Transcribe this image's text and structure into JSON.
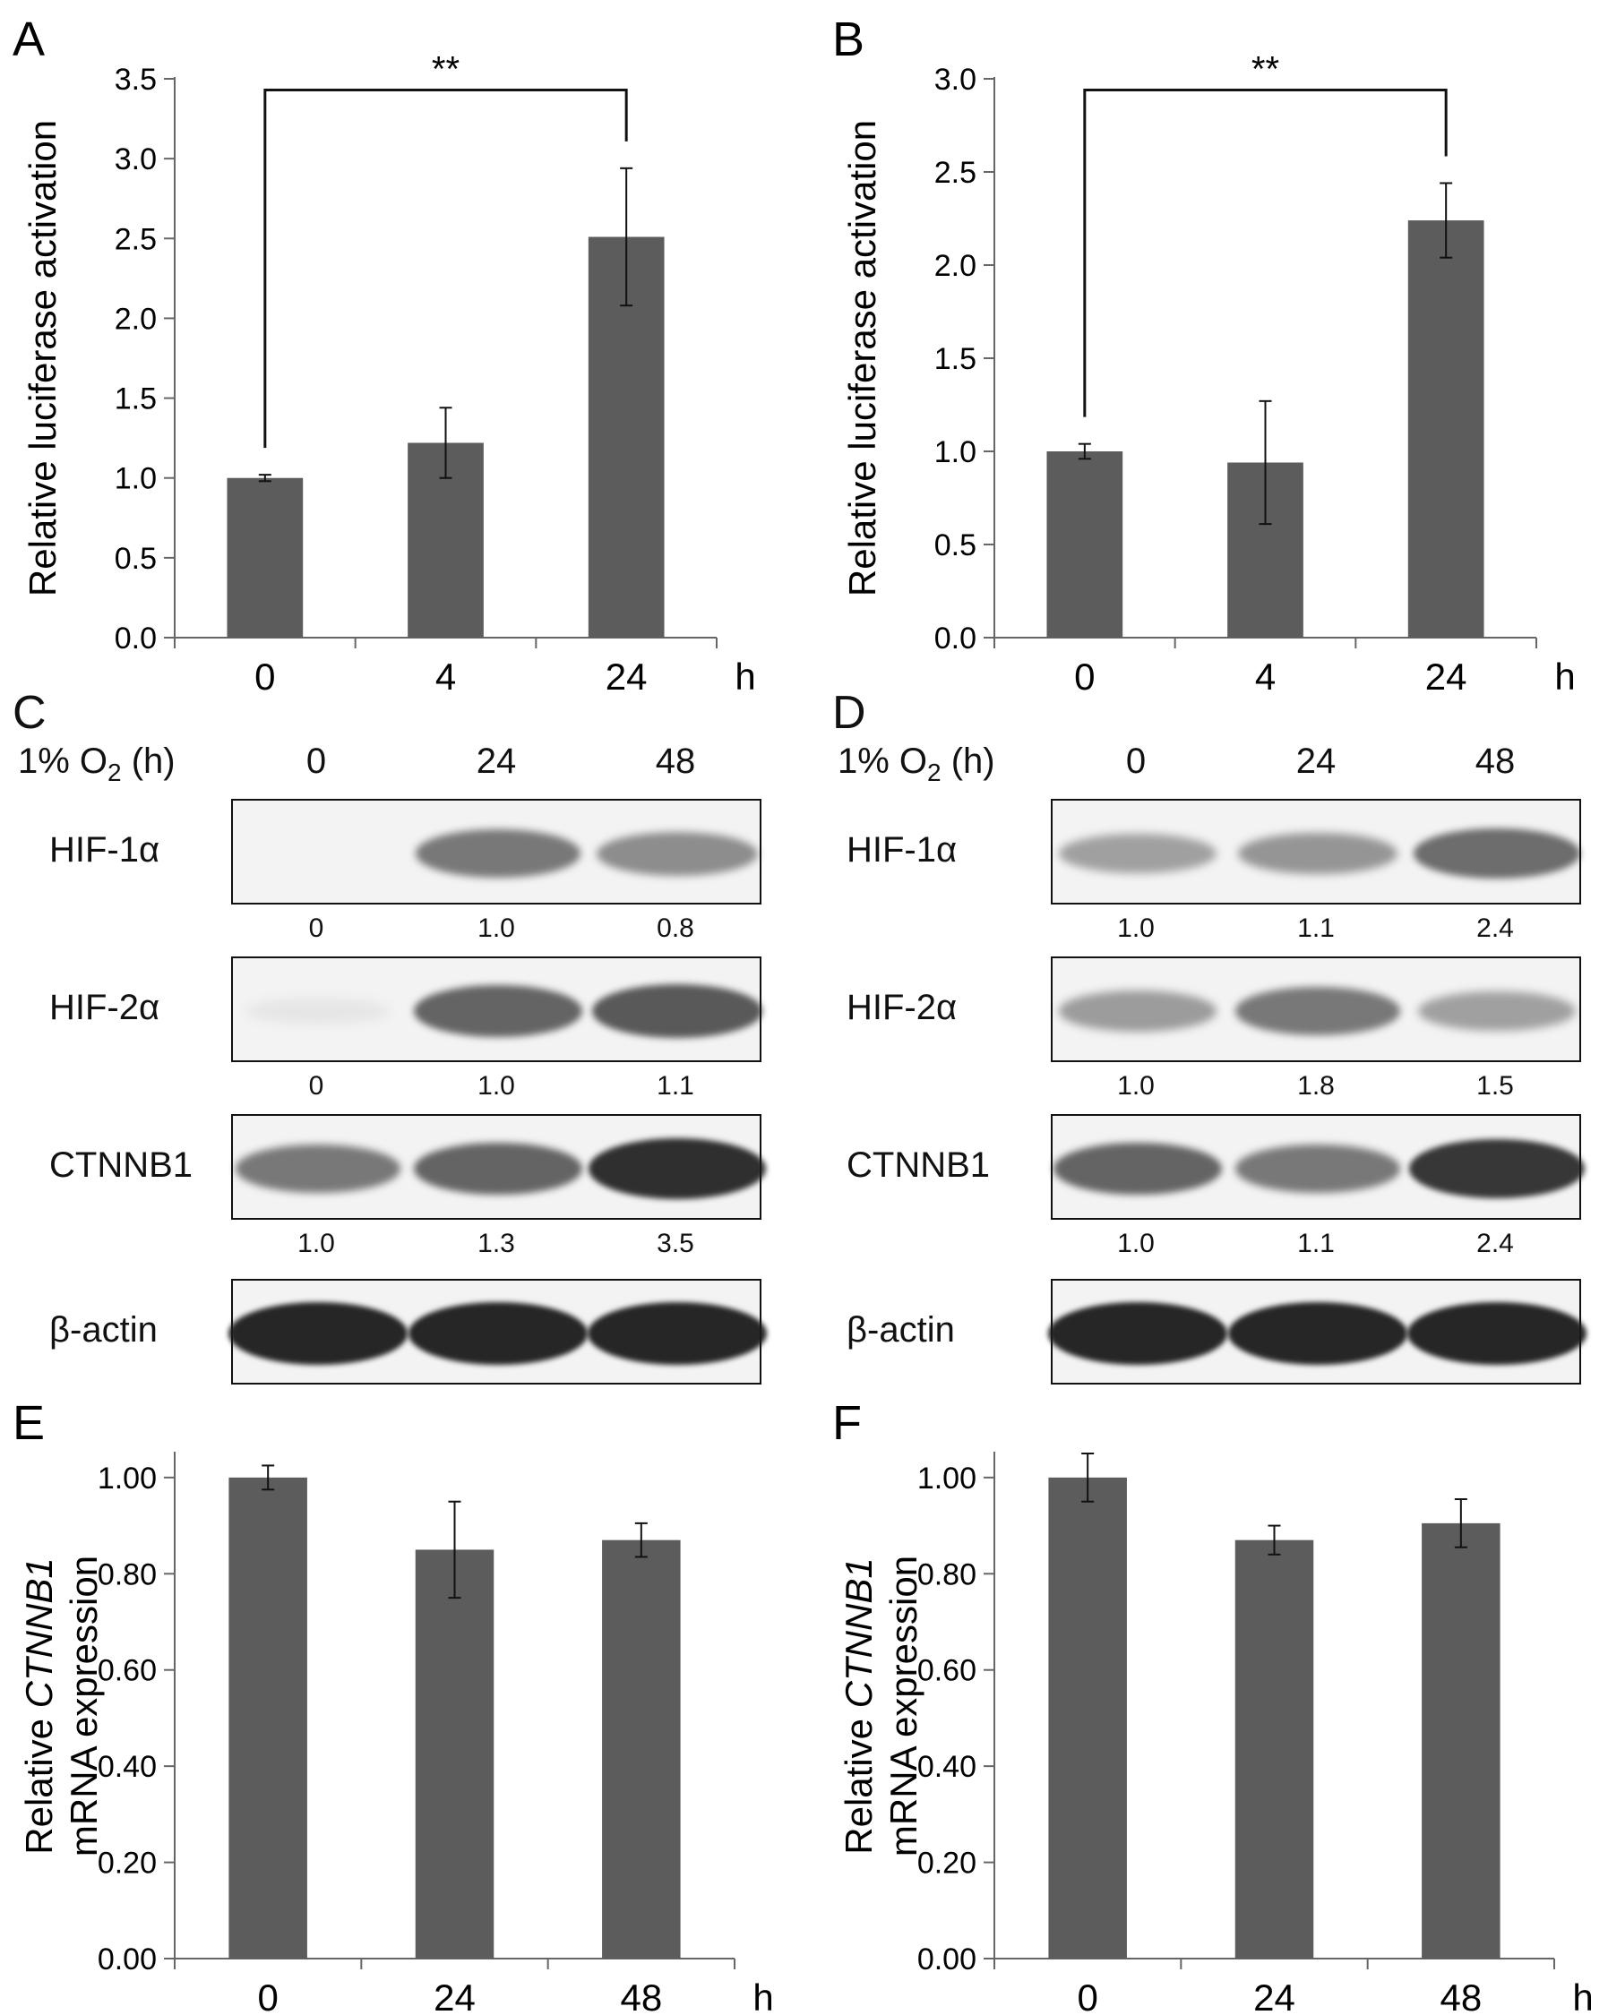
{
  "charts": [
    {
      "id": "A",
      "letter": "A",
      "type": "bar",
      "categories": [
        "0",
        "4",
        "24"
      ],
      "unit": "h",
      "values": [
        1.0,
        1.22,
        2.51
      ],
      "errors": [
        0.02,
        0.22,
        0.43
      ],
      "ylabel_parts": [
        {
          "text": "Relative luciferase activation",
          "italic": false
        }
      ],
      "ylim": [
        0,
        3.5
      ],
      "ticks": [
        0.0,
        0.5,
        1.0,
        1.5,
        2.0,
        2.5,
        3.0,
        3.5
      ],
      "tick_decimals": 1,
      "significance": {
        "from": 0,
        "to": 2,
        "label": "**",
        "y": 3.43
      }
    },
    {
      "id": "B",
      "letter": "B",
      "type": "bar",
      "categories": [
        "0",
        "4",
        "24"
      ],
      "unit": "h",
      "values": [
        1.0,
        0.94,
        2.24
      ],
      "errors": [
        0.04,
        0.33,
        0.2
      ],
      "ylabel_parts": [
        {
          "text": "Relative luciferase activation",
          "italic": false
        }
      ],
      "ylim": [
        0,
        3.0
      ],
      "ticks": [
        0.0,
        0.5,
        1.0,
        1.5,
        2.0,
        2.5,
        3.0
      ],
      "tick_decimals": 1,
      "significance": {
        "from": 0,
        "to": 2,
        "label": "**",
        "y": 2.94
      }
    },
    {
      "id": "E",
      "letter": "E",
      "type": "bar",
      "categories": [
        "0",
        "24",
        "48"
      ],
      "unit": "h",
      "values": [
        1.0,
        0.85,
        0.87
      ],
      "errors": [
        0.025,
        0.1,
        0.035
      ],
      "ylabel_parts": [
        {
          "text": "Relative ",
          "italic": false
        },
        {
          "text": "CTNNB1",
          "italic": true
        },
        {
          "text": "mRNA expression",
          "italic": false,
          "newline": true
        }
      ],
      "ylim": [
        0,
        1.05
      ],
      "ticks": [
        0.0,
        0.2,
        0.4,
        0.6,
        0.8,
        1.0
      ],
      "tick_decimals": 2
    },
    {
      "id": "F",
      "letter": "F",
      "type": "bar",
      "categories": [
        "0",
        "24",
        "48"
      ],
      "unit": "h",
      "values": [
        1.0,
        0.87,
        0.905
      ],
      "errors": [
        0.05,
        0.03,
        0.05
      ],
      "ylabel_parts": [
        {
          "text": "Relative ",
          "italic": false
        },
        {
          "text": "CTNNB1",
          "italic": true
        },
        {
          "text": "mRNA expression",
          "italic": false,
          "newline": true
        }
      ],
      "ylim": [
        0,
        1.05
      ],
      "ticks": [
        0.0,
        0.2,
        0.4,
        0.6,
        0.8,
        1.0
      ],
      "tick_decimals": 2
    }
  ],
  "blots": [
    {
      "id": "C",
      "letter": "C",
      "condition": "1% O",
      "condition_sub": "2",
      "condition_suffix": " (h)",
      "lanes": [
        "0",
        "24",
        "48"
      ],
      "rows": [
        {
          "protein": "HIF-1α",
          "quant": [
            "0",
            "1.0",
            "0.8"
          ],
          "intensity": [
            0.0,
            0.6,
            0.5
          ]
        },
        {
          "protein": "HIF-2α",
          "quant": [
            "0",
            "1.0",
            "1.1"
          ],
          "intensity": [
            0.06,
            0.7,
            0.75
          ]
        },
        {
          "protein": "CTNNB1",
          "quant": [
            "1.0",
            "1.3",
            "3.5"
          ],
          "intensity": [
            0.6,
            0.7,
            0.95
          ]
        },
        {
          "protein": "β-actin",
          "quant": [],
          "intensity": [
            1.0,
            1.0,
            1.0
          ]
        }
      ]
    },
    {
      "id": "D",
      "letter": "D",
      "condition": "1% O",
      "condition_sub": "2",
      "condition_suffix": " (h)",
      "lanes": [
        "0",
        "24",
        "48"
      ],
      "rows": [
        {
          "protein": "HIF-1α",
          "quant": [
            "1.0",
            "1.1",
            "2.4"
          ],
          "intensity": [
            0.4,
            0.45,
            0.65
          ]
        },
        {
          "protein": "HIF-2α",
          "quant": [
            "1.0",
            "1.8",
            "1.5"
          ],
          "intensity": [
            0.42,
            0.6,
            0.4
          ]
        },
        {
          "protein": "CTNNB1",
          "quant": [
            "1.0",
            "1.1",
            "2.4"
          ],
          "intensity": [
            0.7,
            0.6,
            0.92
          ]
        },
        {
          "protein": "β-actin",
          "quant": [],
          "intensity": [
            1.0,
            1.0,
            1.0
          ]
        }
      ]
    }
  ],
  "colors": {
    "bar": "#5c5c5c",
    "axis": "#666666",
    "text": "#111111",
    "band": "#1a1a1a"
  }
}
